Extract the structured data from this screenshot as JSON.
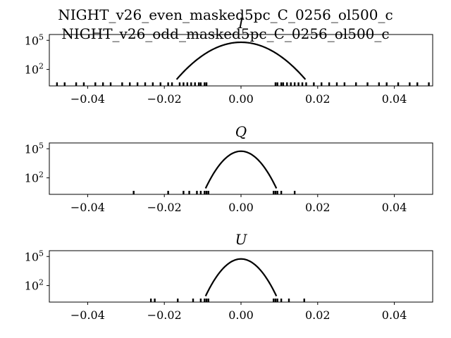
{
  "figure": {
    "title_line1": "NIGHT_v26_even_masked5pc_C_0256_ol500_c",
    "title_line2": "NIGHT_v26_odd_masked5pc_C_0256_ol500_c"
  },
  "chart_data": [
    {
      "type": "histogram",
      "title": "I",
      "xlim": [
        -0.05,
        0.05
      ],
      "ylim_log10": [
        0.3,
        5.6
      ],
      "yscale": "log",
      "x_ticks": [
        "−0.04",
        "−0.02",
        "0.00",
        "0.02",
        "0.04"
      ],
      "x_tick_values": [
        -0.04,
        -0.02,
        0.0,
        0.02,
        0.04
      ],
      "y_ticks": [
        "10^5",
        "10^2"
      ],
      "y_tick_values": [
        100000,
        100
      ],
      "distribution": {
        "center": 0.0,
        "peak": 63000,
        "sigma": 0.004
      },
      "tail_samples": [
        -0.048,
        -0.046,
        -0.043,
        -0.041,
        -0.038,
        -0.036,
        -0.034,
        -0.031,
        -0.029,
        -0.027,
        -0.025,
        -0.023,
        -0.021,
        -0.019,
        -0.018,
        -0.016,
        -0.015,
        -0.014,
        -0.013,
        -0.012,
        -0.011,
        -0.0105,
        -0.0095,
        -0.009,
        0.009,
        0.0095,
        0.0105,
        0.011,
        0.012,
        0.013,
        0.014,
        0.015,
        0.016,
        0.017,
        0.019,
        0.021,
        0.023,
        0.025,
        0.027,
        0.03,
        0.033,
        0.036,
        0.038,
        0.041,
        0.044,
        0.046,
        0.049
      ]
    },
    {
      "type": "histogram",
      "title": "Q",
      "xlim": [
        -0.05,
        0.05
      ],
      "ylim_log10": [
        0.3,
        5.6
      ],
      "yscale": "log",
      "x_ticks": [
        "−0.04",
        "−0.02",
        "0.00",
        "0.02",
        "0.04"
      ],
      "x_tick_values": [
        -0.04,
        -0.02,
        0.0,
        0.02,
        0.04
      ],
      "y_ticks": [
        "10^5",
        "10^2"
      ],
      "y_tick_values": [
        100000,
        100
      ],
      "distribution": {
        "center": 0.0,
        "peak": 56000,
        "sigma": 0.0022
      },
      "tail_samples": [
        -0.028,
        -0.019,
        -0.015,
        -0.0135,
        -0.0115,
        -0.0105,
        -0.0095,
        -0.009,
        -0.0085,
        0.0085,
        0.009,
        0.0095,
        0.0105,
        0.014
      ]
    },
    {
      "type": "histogram",
      "title": "U",
      "xlim": [
        -0.05,
        0.05
      ],
      "ylim_log10": [
        0.3,
        5.6
      ],
      "yscale": "log",
      "x_ticks": [
        "−0.04",
        "−0.02",
        "0.00",
        "0.02",
        "0.04"
      ],
      "x_tick_values": [
        -0.04,
        -0.02,
        0.0,
        0.02,
        0.04
      ],
      "y_ticks": [
        "10^5",
        "10^2"
      ],
      "y_tick_values": [
        100000,
        100
      ],
      "distribution": {
        "center": 0.0,
        "peak": 56000,
        "sigma": 0.0022
      },
      "tail_samples": [
        -0.0235,
        -0.0225,
        -0.0165,
        -0.0125,
        -0.0105,
        -0.0095,
        -0.009,
        -0.0085,
        0.0085,
        0.009,
        0.0095,
        0.0105,
        0.0125,
        0.0165
      ]
    }
  ]
}
